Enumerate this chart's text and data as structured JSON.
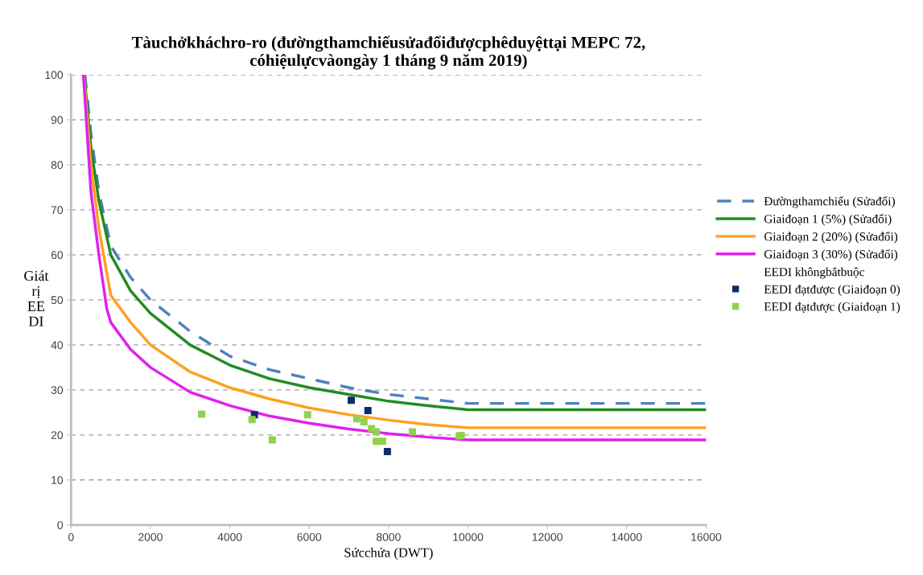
{
  "chart_data": {
    "type": "line",
    "title": "Tàuchởkháchro-ro (đườngthamchiếusửađổiđượcphêduyệttại MEPC 72,\ncóhiệulựcvàongày 1 tháng 9 năm 2019)",
    "xlabel": "Sứcchứa (DWT)",
    "ylabel": "Giát\nrị\nEE\nDI",
    "xlim": [
      0,
      16000
    ],
    "xticks": [
      0,
      2000,
      4000,
      6000,
      8000,
      10000,
      12000,
      14000,
      16000
    ],
    "ylim": [
      0,
      100
    ],
    "yticks": [
      0,
      10,
      20,
      30,
      40,
      50,
      60,
      70,
      80,
      90,
      100
    ],
    "grid": "y",
    "legend": "right",
    "series": [
      {
        "name": "Đườngthamchiếu (Sửađổi)",
        "line_style": "dashed",
        "color": "#4f81bd",
        "x": [
          350,
          500,
          700,
          1000,
          1500,
          2000,
          3000,
          4000,
          5000,
          6000,
          7000,
          8000,
          9000,
          10000,
          16000
        ],
        "values": [
          100,
          87,
          74,
          62,
          55,
          50,
          43,
          37.5,
          34.5,
          32.5,
          30.5,
          29,
          28,
          27,
          27
        ]
      },
      {
        "name": "Giaiđoạn 1 (5%) (Sửađổi)",
        "line_style": "solid",
        "color": "#228b22",
        "x": [
          330,
          500,
          700,
          1000,
          1500,
          2000,
          3000,
          4000,
          5000,
          6000,
          7000,
          8000,
          9000,
          10000,
          16000
        ],
        "values": [
          100,
          84,
          72,
          60,
          52,
          47,
          40,
          35.5,
          32.5,
          30.5,
          29,
          27.5,
          26.5,
          25.6,
          25.6
        ]
      },
      {
        "name": "Giaiđoạn 2 (20%) (Sửađổi)",
        "line_style": "solid",
        "color": "#ffa020",
        "x": [
          320,
          500,
          700,
          1000,
          1500,
          2000,
          3000,
          4000,
          5000,
          6000,
          7000,
          8000,
          9000,
          10000,
          16000
        ],
        "values": [
          100,
          80,
          66,
          51,
          45,
          40,
          34,
          30.5,
          28,
          26,
          24.5,
          23.3,
          22.3,
          21.6,
          21.6
        ]
      },
      {
        "name": "Giaiđoạn 3 (30%) (Sửađổi)",
        "line_style": "solid",
        "color": "#e020f0",
        "x": [
          310,
          500,
          700,
          900,
          1000,
          1500,
          2000,
          3000,
          4000,
          5000,
          6000,
          7000,
          8000,
          9000,
          10000,
          16000
        ],
        "values": [
          100,
          74,
          60,
          48,
          45,
          39,
          35,
          29.5,
          26.5,
          24.2,
          22.6,
          21.3,
          20.3,
          19.5,
          18.9,
          18.9
        ]
      },
      {
        "name": "EEDI khôngbắtbuộc",
        "type": "scatter",
        "marker": "none"
      },
      {
        "name": "EEDI đạtđược (Giaiđoạn 0)",
        "type": "scatter",
        "marker": "square",
        "color": "#0f2b6b",
        "x": [
          4620,
          7060,
          7480,
          7970
        ],
        "values": [
          24.5,
          27.7,
          25.4,
          16.3
        ]
      },
      {
        "name": "EEDI đạtđược (Giaiđoạn 1)",
        "type": "scatter",
        "marker": "square",
        "color": "#92d050",
        "x": [
          3290,
          4560,
          5070,
          5960,
          7200,
          7380,
          7570,
          7690,
          7690,
          7850,
          8600,
          9780,
          9830
        ],
        "values": [
          24.6,
          23.4,
          18.9,
          24.5,
          23.6,
          22.9,
          21.4,
          20.7,
          18.6,
          18.6,
          20.7,
          19.8,
          19.9
        ]
      }
    ]
  }
}
